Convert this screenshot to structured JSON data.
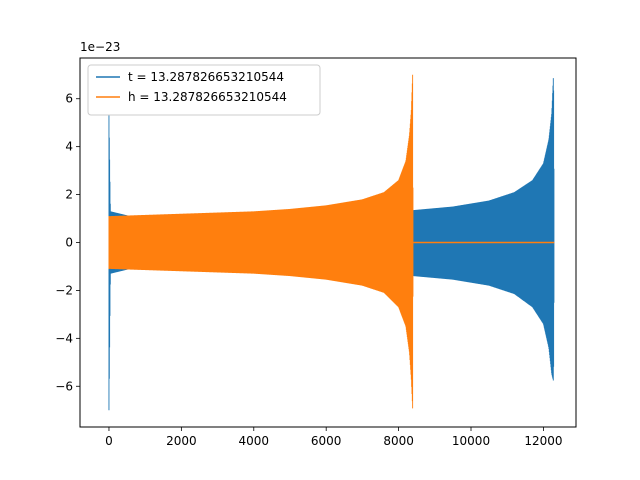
{
  "chart_data": {
    "type": "line",
    "title": "",
    "xlabel": "",
    "ylabel": "",
    "y_offset_text": "1e−23",
    "xlim": [
      -800,
      12900
    ],
    "ylim": [
      -7.7,
      7.7
    ],
    "x_ticks": [
      0,
      2000,
      4000,
      6000,
      8000,
      10000,
      12000
    ],
    "x_tick_labels": [
      "0",
      "2000",
      "4000",
      "6000",
      "8000",
      "10000",
      "12000"
    ],
    "y_ticks": [
      -6,
      -4,
      -2,
      0,
      2,
      4,
      6
    ],
    "y_tick_labels": [
      "−6",
      "−4",
      "−2",
      "0",
      "2",
      "4",
      "6"
    ],
    "grid": false,
    "legend_position": "upper-left",
    "series": [
      {
        "name": "t = 13.287826653210544",
        "color": "#1f77b4",
        "envelope": [
          {
            "x": 0,
            "upper": 5.3,
            "lower": -7.0
          },
          {
            "x": 40,
            "upper": 1.3,
            "lower": -1.3
          },
          {
            "x": 1000,
            "upper": 0.95,
            "lower": -0.95
          },
          {
            "x": 3000,
            "upper": 1.0,
            "lower": -1.0
          },
          {
            "x": 6000,
            "upper": 1.15,
            "lower": -1.15
          },
          {
            "x": 8000,
            "upper": 1.3,
            "lower": -1.3
          },
          {
            "x": 8400,
            "upper": 1.35,
            "lower": -1.4
          },
          {
            "x": 9500,
            "upper": 1.5,
            "lower": -1.55
          },
          {
            "x": 10500,
            "upper": 1.75,
            "lower": -1.8
          },
          {
            "x": 11200,
            "upper": 2.1,
            "lower": -2.15
          },
          {
            "x": 11700,
            "upper": 2.6,
            "lower": -2.7
          },
          {
            "x": 12000,
            "upper": 3.3,
            "lower": -3.4
          },
          {
            "x": 12150,
            "upper": 4.3,
            "lower": -4.4
          },
          {
            "x": 12230,
            "upper": 5.4,
            "lower": -5.5
          },
          {
            "x": 12280,
            "upper": 7.1,
            "lower": -5.8
          },
          {
            "x": 12300,
            "upper": 0.0,
            "lower": 0.0
          }
        ]
      },
      {
        "name": "h = 13.287826653210544",
        "color": "#ff7f0e",
        "envelope": [
          {
            "x": 0,
            "upper": 1.1,
            "lower": -1.1
          },
          {
            "x": 1000,
            "upper": 1.15,
            "lower": -1.15
          },
          {
            "x": 2000,
            "upper": 1.2,
            "lower": -1.2
          },
          {
            "x": 3000,
            "upper": 1.25,
            "lower": -1.25
          },
          {
            "x": 4000,
            "upper": 1.3,
            "lower": -1.3
          },
          {
            "x": 5000,
            "upper": 1.4,
            "lower": -1.4
          },
          {
            "x": 6000,
            "upper": 1.55,
            "lower": -1.55
          },
          {
            "x": 7000,
            "upper": 1.8,
            "lower": -1.8
          },
          {
            "x": 7600,
            "upper": 2.1,
            "lower": -2.1
          },
          {
            "x": 8000,
            "upper": 2.6,
            "lower": -2.7
          },
          {
            "x": 8200,
            "upper": 3.4,
            "lower": -3.5
          },
          {
            "x": 8300,
            "upper": 4.5,
            "lower": -4.6
          },
          {
            "x": 8350,
            "upper": 5.5,
            "lower": -5.7
          },
          {
            "x": 8390,
            "upper": 7.1,
            "lower": -7.0
          },
          {
            "x": 8400,
            "upper": 0.0,
            "lower": 0.0
          },
          {
            "x": 12300,
            "upper": 0.0,
            "lower": 0.0
          }
        ]
      }
    ]
  }
}
